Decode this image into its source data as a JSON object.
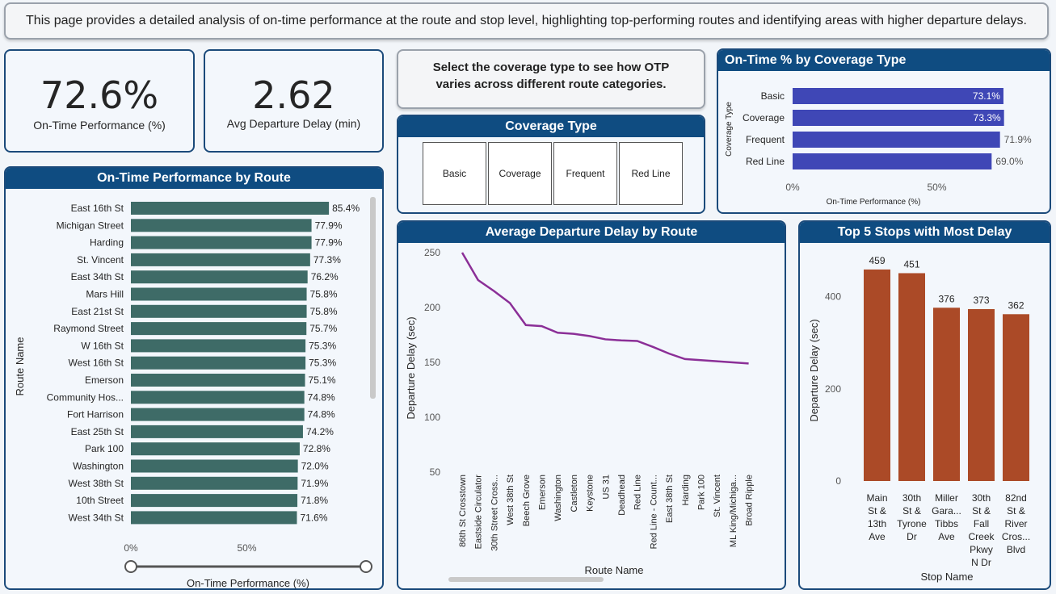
{
  "banner": "This page provides a detailed analysis of on-time performance at the route and stop level, highlighting top-performing routes and identifying areas with higher departure delays.",
  "kpi_otp": {
    "value": "72.6%",
    "label": "On-Time Performance (%)"
  },
  "kpi_delay": {
    "value": "2.62",
    "label": "Avg Departure Delay (min)"
  },
  "coverage_prompt": "Select the coverage type to see how OTP varies across different route categories.",
  "coverage_slicer": {
    "title": "Coverage Type",
    "options": [
      "Basic",
      "Coverage",
      "Frequent",
      "Red Line"
    ]
  },
  "colors": {
    "header": "#0f4c81",
    "otp_bar": "#3e6b67",
    "coverage_bar": "#3f47b6",
    "delay_line": "#8b2f97",
    "stop_bar": "#ab4a27"
  },
  "chart_data": [
    {
      "type": "bar",
      "orientation": "horizontal",
      "title": "On-Time Performance by Route",
      "xlabel": "On-Time Performance (%)",
      "ylabel": "Route Name",
      "xticks": [
        "0%",
        "50%"
      ],
      "xlim": [
        0,
        100
      ],
      "categories": [
        "East 16th St",
        "Michigan Street",
        "Harding",
        "St. Vincent",
        "East 34th St",
        "Mars Hill",
        "East 21st St",
        "Raymond Street",
        "W 16th St",
        "West 16th St",
        "Emerson",
        "Community Hos...",
        "Fort Harrison",
        "East 25th St",
        "Park 100",
        "Washington",
        "West 38th St",
        "10th Street",
        "West 34th St"
      ],
      "values": [
        85.4,
        77.9,
        77.9,
        77.3,
        76.2,
        75.8,
        75.8,
        75.7,
        75.3,
        75.3,
        75.1,
        74.8,
        74.8,
        74.2,
        72.8,
        72.0,
        71.9,
        71.8,
        71.6
      ],
      "labels": [
        "85.4%",
        "77.9%",
        "77.9%",
        "77.3%",
        "76.2%",
        "75.8%",
        "75.8%",
        "75.7%",
        "75.3%",
        "75.3%",
        "75.1%",
        "74.8%",
        "74.8%",
        "74.2%",
        "72.8%",
        "72.0%",
        "71.9%",
        "71.8%",
        "71.6%"
      ]
    },
    {
      "type": "bar",
      "orientation": "horizontal",
      "title": "On-Time % by Coverage Type",
      "xlabel": "On-Time Performance (%)",
      "ylabel": "Coverage Type",
      "xticks": [
        "0%",
        "50%"
      ],
      "xlim": [
        0,
        100
      ],
      "categories": [
        "Basic",
        "Coverage",
        "Frequent",
        "Red Line"
      ],
      "values": [
        73.1,
        73.3,
        71.9,
        69.0
      ],
      "labels": [
        "73.1%",
        "73.3%",
        "71.9%",
        "69.0%"
      ]
    },
    {
      "type": "line",
      "title": "Average Departure Delay by Route",
      "xlabel": "Route Name",
      "ylabel": "Departure Delay (sec)",
      "ylim": [
        50,
        250
      ],
      "yticks": [
        50,
        100,
        150,
        200,
        250
      ],
      "x": [
        "86th St Crosstown",
        "Eastside Circulator",
        "30th Street Cross...",
        "West 38th St",
        "Beech Grove",
        "Emerson",
        "Washington",
        "Castleton",
        "Keystone",
        "US 31",
        "Deadhead",
        "Red Line",
        "Red Line - Count...",
        "East 38th St",
        "Harding",
        "Park 100",
        "St. Vincent",
        "ML King/Michiga...",
        "Broad Ripple"
      ],
      "y": [
        250,
        225,
        215,
        204,
        184,
        183,
        177,
        176,
        174,
        171,
        170,
        169.5,
        164,
        158,
        153,
        152,
        151,
        150,
        149
      ]
    },
    {
      "type": "bar",
      "title": "Top 5 Stops with Most Delay",
      "xlabel": "Stop Name",
      "ylabel": "Departure Delay (sec)",
      "ylim": [
        0,
        500
      ],
      "yticks": [
        0,
        200,
        400
      ],
      "categories": [
        [
          "Main",
          "St &",
          "13th",
          "Ave"
        ],
        [
          "30th",
          "St &",
          "Tyrone",
          "Dr"
        ],
        [
          "Miller",
          "Gara...",
          "Tibbs",
          "Ave"
        ],
        [
          "30th",
          "St &",
          "Fall",
          "Creek",
          "Pkwy",
          "N Dr"
        ],
        [
          "82nd",
          "St &",
          "River",
          "Cros...",
          "Blvd"
        ]
      ],
      "values": [
        459,
        451,
        376,
        373,
        362
      ]
    }
  ]
}
